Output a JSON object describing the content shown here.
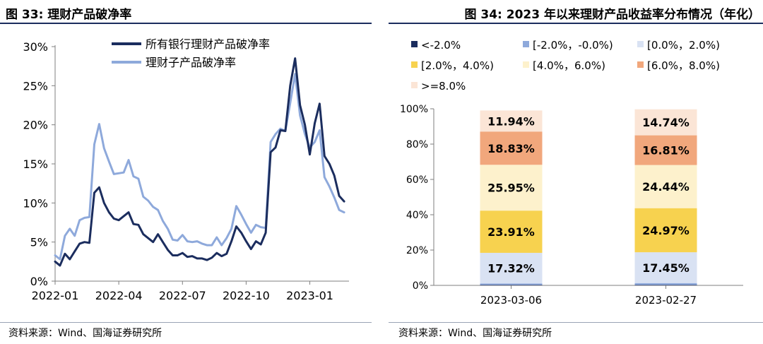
{
  "left_panel": {
    "title": "图 33:  理财产品破净率",
    "source": "资料来源：Wind、国海证券研究所"
  },
  "right_panel": {
    "title": "图 34: 2023 年以来理财产品收益率分布情况（年化）",
    "source": "资料来源：Wind、国海证券研究所"
  },
  "chart_data": [
    {
      "type": "line",
      "title": "",
      "xlabel": "",
      "ylabel": "",
      "x_ticks": [
        "2022-01",
        "2022-04",
        "2022-07",
        "2022-10",
        "2023-01"
      ],
      "y_ticks": [
        "0%",
        "5%",
        "10%",
        "15%",
        "20%",
        "25%",
        "30%"
      ],
      "ylim": [
        0,
        30
      ],
      "x_range_weeks": [
        0,
        60
      ],
      "x_tick_weeks": [
        0,
        13,
        26,
        39,
        52
      ],
      "legend_position": "top-center",
      "grid": false,
      "series": [
        {
          "name": "所有银行理财产品破净率",
          "color": "#1b2d5e",
          "x_weeks": [
            0,
            1,
            2,
            3,
            4,
            5,
            6,
            7,
            8,
            9,
            10,
            11,
            12,
            13,
            14,
            15,
            16,
            17,
            18,
            19,
            20,
            21,
            22,
            23,
            24,
            25,
            26,
            27,
            28,
            29,
            30,
            31,
            32,
            33,
            34,
            35,
            36,
            37,
            38,
            39,
            40,
            41,
            42,
            43,
            44,
            45,
            46,
            47,
            48,
            49,
            50,
            51,
            52,
            53,
            54,
            55,
            56,
            57,
            58,
            59
          ],
          "values": [
            2.5,
            2.0,
            3.5,
            2.8,
            3.8,
            4.8,
            5.0,
            4.9,
            11.3,
            12.0,
            10.0,
            8.8,
            8.0,
            7.8,
            8.3,
            8.8,
            7.3,
            7.2,
            6.0,
            5.5,
            5.0,
            6.0,
            5.0,
            4.0,
            3.3,
            3.3,
            3.6,
            3.1,
            3.2,
            2.9,
            2.9,
            2.7,
            3.0,
            3.6,
            3.2,
            3.5,
            5.1,
            7.0,
            6.2,
            5.1,
            4.1,
            5.1,
            4.7,
            6.2,
            16.5,
            17.1,
            19.3,
            19.2,
            25.0,
            28.5,
            22.5,
            20.0,
            16.2,
            20.2,
            22.7,
            16.0,
            15.0,
            13.5,
            10.9,
            10.2
          ]
        },
        {
          "name": "理财子产品破净率",
          "color": "#8ea9db",
          "x_weeks": [
            0,
            1,
            2,
            3,
            4,
            5,
            6,
            7,
            8,
            9,
            10,
            11,
            12,
            13,
            14,
            15,
            16,
            17,
            18,
            19,
            20,
            21,
            22,
            23,
            24,
            25,
            26,
            27,
            28,
            29,
            30,
            31,
            32,
            33,
            34,
            35,
            36,
            37,
            38,
            39,
            40,
            41,
            42,
            43,
            44,
            45,
            46,
            47,
            48,
            49,
            50,
            51,
            52,
            53,
            54,
            55,
            56,
            57,
            58,
            59
          ],
          "values": [
            3.3,
            2.8,
            5.8,
            6.7,
            5.8,
            7.8,
            8.1,
            8.2,
            17.5,
            20.1,
            17.0,
            15.3,
            13.7,
            13.8,
            13.9,
            15.5,
            13.4,
            13.1,
            10.8,
            10.3,
            9.5,
            9.1,
            7.7,
            6.7,
            5.3,
            5.2,
            5.9,
            5.1,
            5.0,
            5.1,
            4.8,
            4.6,
            4.6,
            5.6,
            4.6,
            5.5,
            6.7,
            9.6,
            8.5,
            7.3,
            6.2,
            7.2,
            6.9,
            6.8,
            17.8,
            18.8,
            19.5,
            19.2,
            22.8,
            26.5,
            21.2,
            18.8,
            17.1,
            17.8,
            19.3,
            13.3,
            12.1,
            10.7,
            9.1,
            8.8
          ]
        }
      ]
    },
    {
      "type": "bar",
      "stacked": true,
      "title": "",
      "xlabel": "",
      "ylabel": "",
      "categories": [
        "2023-03-06",
        "2023-02-27"
      ],
      "y_ticks": [
        "0%",
        "20%",
        "40%",
        "60%",
        "80%",
        "100%"
      ],
      "ylim": [
        0,
        100
      ],
      "legend_position": "top",
      "grid": false,
      "series": [
        {
          "name": "<-2.0%",
          "color": "#1b2d5e",
          "values": [
            0.3,
            0.3
          ],
          "labels": [
            "",
            ""
          ]
        },
        {
          "name": "[-2.0%，-0.0%)",
          "color": "#8ea9db",
          "values": [
            0.8,
            1.0
          ],
          "labels": [
            "",
            ""
          ]
        },
        {
          "name": "[0.0%，2.0%)",
          "color": "#d9e2f3",
          "values": [
            17.32,
            17.45
          ],
          "labels": [
            "17.32%",
            "17.45%"
          ]
        },
        {
          "name": "[2.0%，4.0%)",
          "color": "#f7d24f",
          "values": [
            23.91,
            24.97
          ],
          "labels": [
            "23.91%",
            "24.97%"
          ]
        },
        {
          "name": "[4.0%，6.0%)",
          "color": "#fdf1cc",
          "values": [
            25.95,
            24.44
          ],
          "labels": [
            "25.95%",
            "24.44%"
          ]
        },
        {
          "name": "[6.0%，8.0%)",
          "color": "#f1a77c",
          "values": [
            18.83,
            16.81
          ],
          "labels": [
            "18.83%",
            "16.81%"
          ]
        },
        {
          "name": ">=8.0%",
          "color": "#fbe5d6",
          "values": [
            11.94,
            14.74
          ],
          "labels": [
            "11.94%",
            "14.74%"
          ]
        }
      ]
    }
  ]
}
